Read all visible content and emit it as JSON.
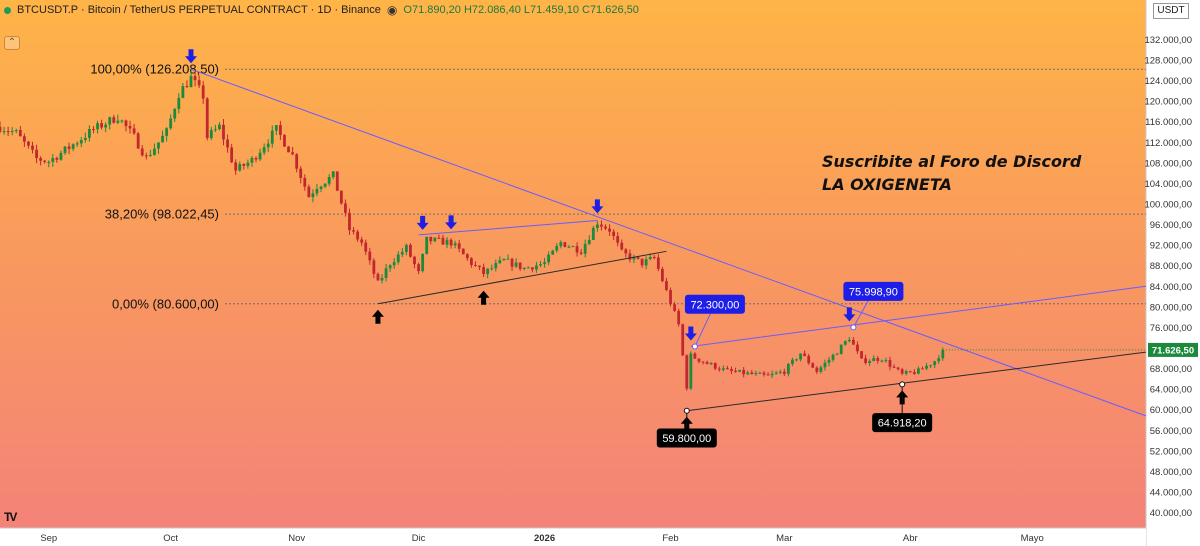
{
  "header": {
    "symbol": "BTCUSDT.P · Bitcoin / TetherUS PERPETUAL CONTRACT · 1D · Binance",
    "ohlc": "O71.890,20 H72.086,40 L71.459,10 C71.626,50"
  },
  "currency": "USDT",
  "promo": {
    "line1": "Suscribite al Foro de Discord",
    "line2": "LA OXIGENETA"
  },
  "colors": {
    "up": "#1c8a3c",
    "down": "#c2262f",
    "channel": "#6a5cff",
    "blueLabel": "#1e1ee8",
    "blackLabel": "#000000"
  },
  "chart_data": {
    "type": "candlestick",
    "yaxis": {
      "min": 37000,
      "max": 135000,
      "ticks": [
        {
          "v": 132000,
          "t": "132.000,00"
        },
        {
          "v": 128000,
          "t": "128.000,00"
        },
        {
          "v": 124000,
          "t": "124.000,00"
        },
        {
          "v": 120000,
          "t": "120.000,00"
        },
        {
          "v": 116000,
          "t": "116.000,00"
        },
        {
          "v": 112000,
          "t": "112.000,00"
        },
        {
          "v": 108000,
          "t": "108.000,00"
        },
        {
          "v": 104000,
          "t": "104.000,00"
        },
        {
          "v": 100000,
          "t": "100.000,00"
        },
        {
          "v": 96000,
          "t": "96.000,00"
        },
        {
          "v": 92000,
          "t": "92.000,00"
        },
        {
          "v": 88000,
          "t": "88.000,00"
        },
        {
          "v": 84000,
          "t": "84.000,00"
        },
        {
          "v": 80000,
          "t": "80.000,00"
        },
        {
          "v": 76000,
          "t": "76.000,00"
        },
        {
          "v": 68000,
          "t": "68.000,00"
        },
        {
          "v": 64000,
          "t": "64.000,00"
        },
        {
          "v": 60000,
          "t": "60.000,00"
        },
        {
          "v": 56000,
          "t": "56.000,00"
        },
        {
          "v": 52000,
          "t": "52.000,00"
        },
        {
          "v": 48000,
          "t": "48.000,00"
        },
        {
          "v": 44000,
          "t": "44.000,00"
        },
        {
          "v": 40000,
          "t": "40.000,00"
        }
      ]
    },
    "xaxis": {
      "start": "2025-08-20",
      "end": "2026-05-29",
      "labels": [
        {
          "d": "2025-09-01",
          "t": "Sep",
          "bold": false
        },
        {
          "d": "2025-10-01",
          "t": "Oct",
          "bold": false
        },
        {
          "d": "2025-11-01",
          "t": "Nov",
          "bold": false
        },
        {
          "d": "2025-12-01",
          "t": "Dic",
          "bold": false
        },
        {
          "d": "2026-01-01",
          "t": "2026",
          "bold": true
        },
        {
          "d": "2026-02-01",
          "t": "Feb",
          "bold": false
        },
        {
          "d": "2026-03-01",
          "t": "Mar",
          "bold": false
        },
        {
          "d": "2026-04-01",
          "t": "Abr",
          "bold": false
        },
        {
          "d": "2026-05-01",
          "t": "Mayo",
          "bold": false
        }
      ]
    },
    "last_price": {
      "value": 71626.5,
      "text": "71.626,50"
    },
    "anchors": [
      {
        "d": "2025-08-20",
        "p": 115000
      },
      {
        "d": "2025-08-24",
        "p": 113800
      },
      {
        "d": "2025-08-29",
        "p": 108800
      },
      {
        "d": "2025-09-01",
        "p": 108300
      },
      {
        "d": "2025-09-06",
        "p": 111000
      },
      {
        "d": "2025-09-12",
        "p": 114500
      },
      {
        "d": "2025-09-18",
        "p": 117000
      },
      {
        "d": "2025-09-22",
        "p": 113000
      },
      {
        "d": "2025-09-25",
        "p": 109000
      },
      {
        "d": "2025-09-30",
        "p": 114000
      },
      {
        "d": "2025-10-03",
        "p": 121500
      },
      {
        "d": "2025-10-06",
        "p": 124500
      },
      {
        "d": "2025-10-09",
        "p": 121000
      },
      {
        "d": "2025-10-10",
        "p": 113000
      },
      {
        "d": "2025-10-13",
        "p": 115000
      },
      {
        "d": "2025-10-17",
        "p": 106500
      },
      {
        "d": "2025-10-21",
        "p": 108500
      },
      {
        "d": "2025-10-27",
        "p": 114500
      },
      {
        "d": "2025-10-31",
        "p": 109500
      },
      {
        "d": "2025-11-04",
        "p": 101500
      },
      {
        "d": "2025-11-06",
        "p": 103500
      },
      {
        "d": "2025-11-10",
        "p": 105500
      },
      {
        "d": "2025-11-14",
        "p": 95000
      },
      {
        "d": "2025-11-17",
        "p": 92500
      },
      {
        "d": "2025-11-21",
        "p": 84500
      },
      {
        "d": "2025-11-24",
        "p": 88500
      },
      {
        "d": "2025-11-28",
        "p": 91500
      },
      {
        "d": "2025-12-01",
        "p": 86500
      },
      {
        "d": "2025-12-03",
        "p": 93000
      },
      {
        "d": "2025-12-09",
        "p": 92500
      },
      {
        "d": "2025-12-14",
        "p": 88500
      },
      {
        "d": "2025-12-17",
        "p": 86500
      },
      {
        "d": "2025-12-22",
        "p": 89000
      },
      {
        "d": "2025-12-27",
        "p": 87500
      },
      {
        "d": "2026-01-01",
        "p": 88500
      },
      {
        "d": "2026-01-05",
        "p": 92500
      },
      {
        "d": "2026-01-10",
        "p": 91000
      },
      {
        "d": "2026-01-14",
        "p": 96500
      },
      {
        "d": "2026-01-17",
        "p": 95000
      },
      {
        "d": "2026-01-20",
        "p": 90500
      },
      {
        "d": "2026-01-25",
        "p": 88500
      },
      {
        "d": "2026-01-28",
        "p": 89500
      },
      {
        "d": "2026-01-31",
        "p": 83000
      },
      {
        "d": "2026-02-03",
        "p": 76500
      },
      {
        "d": "2026-02-05",
        "p": 64500
      },
      {
        "d": "2026-02-06",
        "p": 70500
      },
      {
        "d": "2026-02-10",
        "p": 69000
      },
      {
        "d": "2026-02-15",
        "p": 67500
      },
      {
        "d": "2026-02-20",
        "p": 67000
      },
      {
        "d": "2026-02-25",
        "p": 66500
      },
      {
        "d": "2026-03-01",
        "p": 67500
      },
      {
        "d": "2026-03-05",
        "p": 71000
      },
      {
        "d": "2026-03-09",
        "p": 67500
      },
      {
        "d": "2026-03-13",
        "p": 70500
      },
      {
        "d": "2026-03-17",
        "p": 74000
      },
      {
        "d": "2026-03-20",
        "p": 69500
      },
      {
        "d": "2026-03-25",
        "p": 70000
      },
      {
        "d": "2026-03-30",
        "p": 66800
      },
      {
        "d": "2026-04-03",
        "p": 67500
      },
      {
        "d": "2026-04-07",
        "p": 69500
      },
      {
        "d": "2026-04-09",
        "p": 71600
      }
    ],
    "fibonacci": [
      {
        "label": "100,00% (126.208,50)",
        "value": 126208.5
      },
      {
        "label": "38,20% (98.022,45)",
        "value": 98022.45
      },
      {
        "label": "0,00% (80.600,00)",
        "value": 80600
      }
    ],
    "trendlines": [
      {
        "from": {
          "d": "2025-10-06",
          "p": 126208.5
        },
        "to": {
          "d": "2026-05-29",
          "p": 58800
        },
        "color": "channel"
      },
      {
        "from": {
          "d": "2025-11-21",
          "p": 80600
        },
        "to": {
          "d": "2026-01-31",
          "p": 90800
        },
        "color": "dark"
      },
      {
        "from": {
          "d": "2025-12-01",
          "p": 94000
        },
        "to": {
          "d": "2026-01-14",
          "p": 96800
        },
        "color": "channel"
      },
      {
        "from": {
          "d": "2026-02-06",
          "p": 72300
        },
        "to": {
          "d": "2026-05-29",
          "p": 84000
        },
        "color": "channel"
      },
      {
        "from": {
          "d": "2026-02-05",
          "p": 59800
        },
        "to": {
          "d": "2026-05-29",
          "p": 71200
        },
        "color": "dark"
      }
    ],
    "arrows": [
      {
        "d": "2025-10-06",
        "p": 126208.5,
        "dir": "down",
        "color": "blue"
      },
      {
        "d": "2025-12-02",
        "p": 93800,
        "dir": "down",
        "color": "blue"
      },
      {
        "d": "2025-12-09",
        "p": 93900,
        "dir": "down",
        "color": "blue"
      },
      {
        "d": "2026-01-14",
        "p": 97000,
        "dir": "down",
        "color": "blue"
      },
      {
        "d": "2026-02-06",
        "p": 72300,
        "dir": "down",
        "color": "blue"
      },
      {
        "d": "2026-03-17",
        "p": 76000,
        "dir": "down",
        "color": "blue"
      },
      {
        "d": "2025-11-21",
        "p": 80600,
        "dir": "up",
        "color": "black"
      },
      {
        "d": "2025-12-17",
        "p": 84300,
        "dir": "up",
        "color": "black"
      },
      {
        "d": "2026-02-05",
        "p": 59800,
        "dir": "up",
        "color": "black"
      },
      {
        "d": "2026-03-30",
        "p": 64918.2,
        "dir": "up",
        "color": "black"
      }
    ],
    "price_labels": [
      {
        "text": "72.300,00",
        "d": "2026-02-07",
        "p": 72300,
        "label_p": 80500,
        "color": "blueLabel"
      },
      {
        "text": "75.998,90",
        "d": "2026-03-18",
        "p": 76000,
        "label_p": 83000,
        "color": "blueLabel"
      },
      {
        "text": "59.800,00",
        "d": "2026-02-05",
        "p": 59800,
        "label_p": 54500,
        "color": "blackLabel"
      },
      {
        "text": "64.918,20",
        "d": "2026-03-30",
        "p": 64918.2,
        "label_p": 57500,
        "color": "blackLabel"
      }
    ]
  }
}
